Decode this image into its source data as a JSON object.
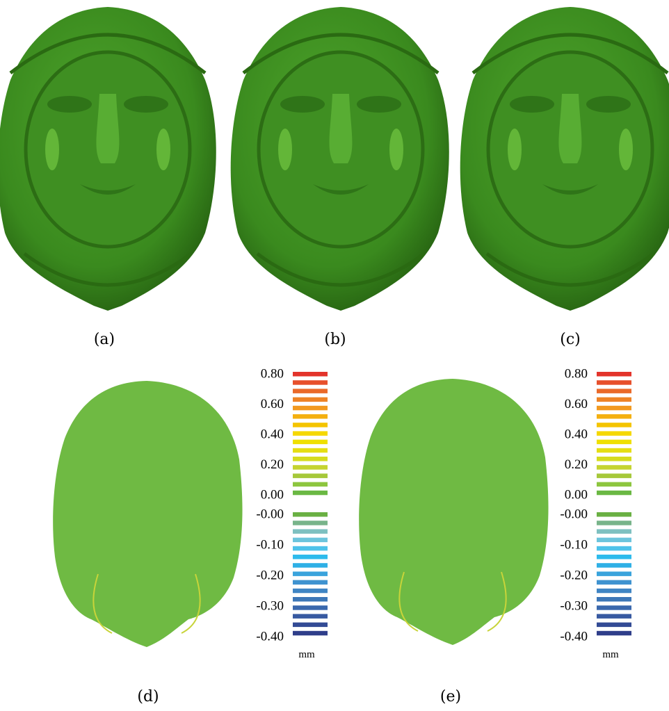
{
  "panels": [
    {
      "caption": "(a)"
    },
    {
      "caption": "(b)"
    },
    {
      "caption": "(c)"
    },
    {
      "caption": "(d)"
    },
    {
      "caption": "(e)"
    }
  ],
  "colorbars": [
    {
      "positive_labels": [
        "0.80",
        "0.60",
        "0.40",
        "0.20",
        "0.00"
      ],
      "negative_labels": [
        "-0.00",
        "-0.10",
        "-0.20",
        "-0.30",
        "-0.40"
      ],
      "unit": "mm",
      "positive_colors": [
        "#e3342b",
        "#e7502c",
        "#ea6a2a",
        "#ee8326",
        "#f2991f",
        "#f4b010",
        "#f4c400",
        "#f5d800",
        "#efe000",
        "#e5de12",
        "#d6dc1e",
        "#c5d430",
        "#a6c83a",
        "#8dc63f",
        "#6ab843"
      ],
      "negative_colors": [
        "#6ab043",
        "#78b48a",
        "#7ec0c0",
        "#6cc4dc",
        "#4ec2ea",
        "#2ebbec",
        "#2fb0e6",
        "#3aa3dc",
        "#3f93d0",
        "#3f85c4",
        "#3d77b8",
        "#3a68ad",
        "#3759a1",
        "#334b95",
        "#2f3e8a"
      ]
    },
    {
      "positive_labels": [
        "0.80",
        "0.60",
        "0.40",
        "0.20",
        "0.00"
      ],
      "negative_labels": [
        "-0.00",
        "-0.10",
        "-0.20",
        "-0.30",
        "-0.40"
      ],
      "unit": "mm",
      "positive_colors": [
        "#e3342b",
        "#e7502c",
        "#ea6a2a",
        "#ee8326",
        "#f2991f",
        "#f4b010",
        "#f4c400",
        "#f5d800",
        "#efe000",
        "#e5de12",
        "#d6dc1e",
        "#c5d430",
        "#a6c83a",
        "#8dc63f",
        "#6ab843"
      ],
      "negative_colors": [
        "#6ab043",
        "#78b48a",
        "#7ec0c0",
        "#6cc4dc",
        "#4ec2ea",
        "#2ebbec",
        "#2fb0e6",
        "#3aa3dc",
        "#3f93d0",
        "#3f85c4",
        "#3d77b8",
        "#3a68ad",
        "#3759a1",
        "#334b95",
        "#2f3e8a"
      ]
    }
  ]
}
